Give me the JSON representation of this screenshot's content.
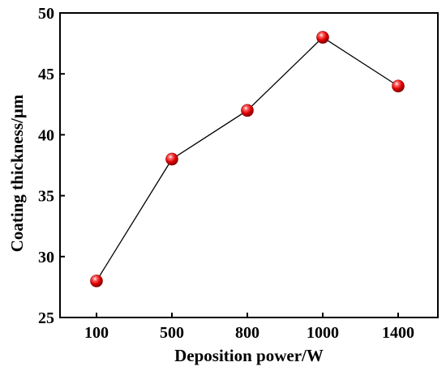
{
  "chart_data": {
    "type": "line",
    "categories": [
      "100",
      "500",
      "800",
      "1000",
      "1400"
    ],
    "values": [
      28,
      38,
      42,
      48,
      44
    ],
    "xlabel": "Deposition power/W",
    "ylabel": "Coating thickness/μm",
    "ylim": [
      25,
      50
    ],
    "yticks": [
      25,
      30,
      35,
      40,
      45,
      50
    ],
    "grid": false,
    "marker_color": "#e00000",
    "line_color": "#000000"
  }
}
